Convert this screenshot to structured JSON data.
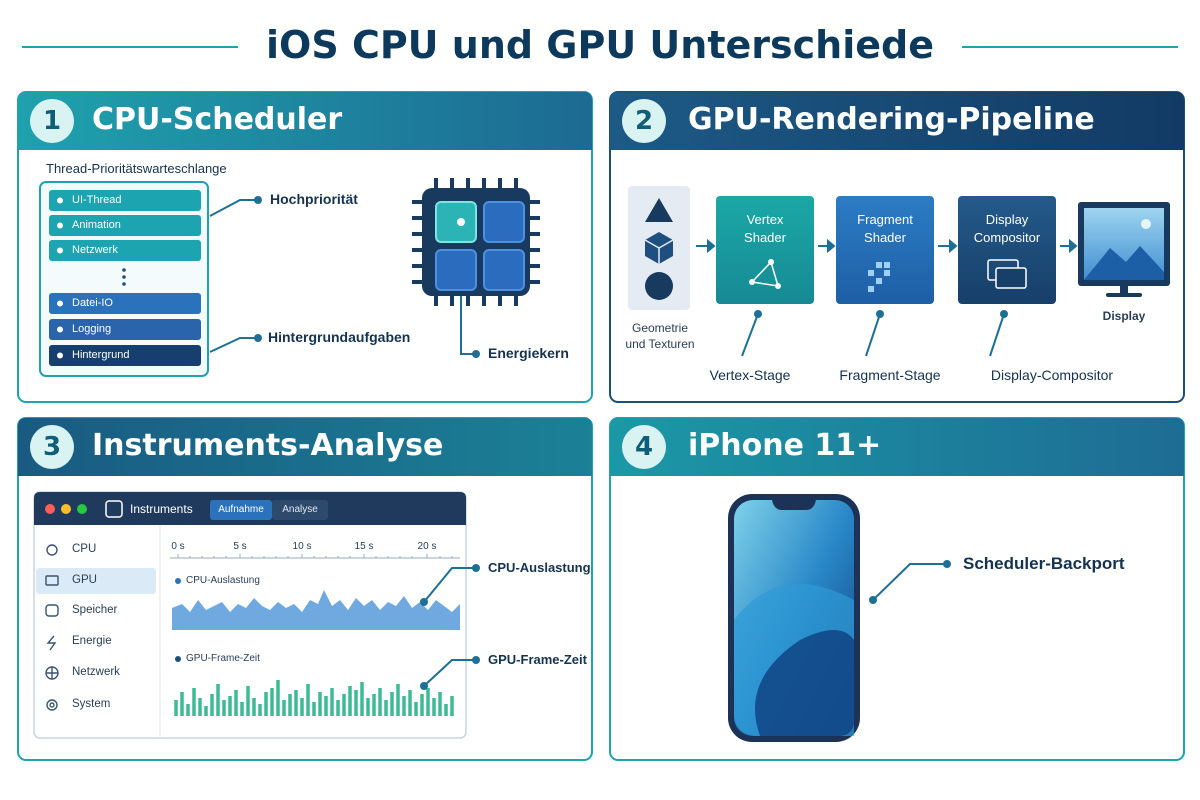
{
  "title": "iOS CPU und GPU Unterschiede",
  "panels": [
    {
      "number": "1",
      "title": "CPU-Scheduler",
      "queue_title": "Thread-Prioritätswarteschlange",
      "threads": [
        "UI-Thread",
        "Animation",
        "Netzwerk",
        "Datei-IO",
        "Logging",
        "Hintergrund"
      ],
      "callouts": [
        "Hochpriorität",
        "Hintergrundaufgaben",
        "Energiekern"
      ]
    },
    {
      "number": "2",
      "title": "GPU-Rendering-Pipeline",
      "stages": [
        [
          "Geometrie",
          "und Texturen"
        ],
        [
          "Vertex",
          "Shader"
        ],
        [
          "Fragment",
          "Shader"
        ],
        [
          "Display",
          "Compositor"
        ],
        [
          "Display"
        ]
      ],
      "callouts": [
        "Vertex-Stage",
        "Fragment-Stage",
        "Display-Compositor"
      ]
    },
    {
      "number": "3",
      "title": "Instruments-Analyse",
      "app": "Instruments",
      "tabs": [
        "Aufnahme",
        "Analyse"
      ],
      "sidebar": [
        "CPU",
        "GPU",
        "Speicher",
        "Energie",
        "Netzwerk",
        "System"
      ],
      "timeline": [
        "0 s",
        "5 s",
        "10 s",
        "15 s",
        "20 s"
      ],
      "tracks": [
        "CPU-Auslastung",
        "GPU-Frame-Zeit"
      ],
      "callouts": [
        "CPU-Auslastung",
        "GPU-Frame-Zeit"
      ]
    },
    {
      "number": "4",
      "title": "iPhone 11+",
      "callouts": [
        "Scheduler-Backport"
      ]
    }
  ]
}
